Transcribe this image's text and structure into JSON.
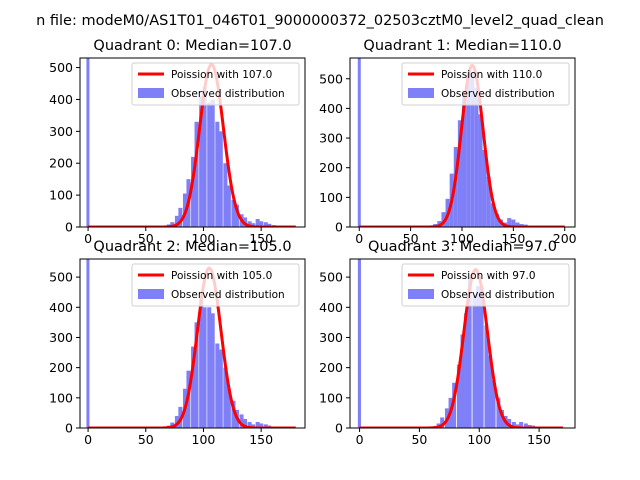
{
  "figure": {
    "suptitle": "n file: modeM0/AS1T01_046T01_9000000372_02503cztM0_level2_quad_clean"
  },
  "colors": {
    "hist": "#7f7ff7",
    "curve": "#ff0000",
    "axis": "#000000",
    "legend_border": "#d0d0d0"
  },
  "chart_data": [
    {
      "type": "bar",
      "title": "Quadrant 0: Median=107.0",
      "xlim": [
        -7,
        188
      ],
      "ylim": [
        0,
        530
      ],
      "xticks": [
        0,
        50,
        100,
        150
      ],
      "yticks": [
        0,
        100,
        200,
        300,
        400,
        500
      ],
      "xtick_labels": [
        "0",
        "50",
        "100",
        "150"
      ],
      "ytick_labels": [
        "0",
        "100",
        "200",
        "300",
        "400",
        "500"
      ],
      "legend": {
        "position": "upper-right",
        "entries": [
          "Poission with 107.0",
          "Observed distribution"
        ]
      },
      "poisson_mean": 107,
      "curve_peak": 510,
      "curve_x_range": [
        0,
        180
      ],
      "bin_width": 3.5,
      "zero_bar": 530,
      "bins": [
        [
          66,
          2
        ],
        [
          70,
          8
        ],
        [
          73,
          15
        ],
        [
          77,
          35
        ],
        [
          80,
          60
        ],
        [
          84,
          105
        ],
        [
          87,
          150
        ],
        [
          91,
          220
        ],
        [
          94,
          330
        ],
        [
          98,
          410
        ],
        [
          101,
          440
        ],
        [
          105,
          390
        ],
        [
          108,
          400
        ],
        [
          112,
          330
        ],
        [
          115,
          300
        ],
        [
          119,
          200
        ],
        [
          122,
          130
        ],
        [
          126,
          85
        ],
        [
          129,
          70
        ],
        [
          133,
          40
        ],
        [
          136,
          30
        ],
        [
          140,
          18
        ],
        [
          143,
          12
        ],
        [
          147,
          25
        ],
        [
          150,
          18
        ],
        [
          154,
          15
        ],
        [
          157,
          10
        ],
        [
          161,
          6
        ],
        [
          164,
          4
        ],
        [
          168,
          3
        ],
        [
          171,
          2
        ],
        [
          175,
          2
        ],
        [
          178,
          1
        ]
      ]
    },
    {
      "type": "bar",
      "title": "Quadrant 1: Median=110.0",
      "xlim": [
        -9,
        210
      ],
      "ylim": [
        0,
        570
      ],
      "xticks": [
        0,
        50,
        100,
        150,
        200
      ],
      "yticks": [
        0,
        100,
        200,
        300,
        400,
        500
      ],
      "xtick_labels": [
        "0",
        "50",
        "100",
        "150",
        "200"
      ],
      "ytick_labels": [
        "0",
        "100",
        "200",
        "300",
        "400",
        "500"
      ],
      "legend": {
        "position": "upper-right",
        "entries": [
          "Poission with 110.0",
          "Observed distribution"
        ]
      },
      "poisson_mean": 110,
      "curve_peak": 545,
      "curve_x_range": [
        0,
        200
      ],
      "bin_width": 4,
      "zero_bar": 570,
      "bins": [
        [
          70,
          3
        ],
        [
          74,
          10
        ],
        [
          78,
          20
        ],
        [
          82,
          50
        ],
        [
          86,
          95
        ],
        [
          90,
          180
        ],
        [
          94,
          270
        ],
        [
          98,
          360
        ],
        [
          102,
          460
        ],
        [
          106,
          500
        ],
        [
          110,
          520
        ],
        [
          114,
          470
        ],
        [
          118,
          380
        ],
        [
          122,
          260
        ],
        [
          126,
          170
        ],
        [
          130,
          80
        ],
        [
          134,
          45
        ],
        [
          138,
          25
        ],
        [
          142,
          15
        ],
        [
          146,
          30
        ],
        [
          150,
          25
        ],
        [
          154,
          15
        ],
        [
          158,
          10
        ],
        [
          162,
          8
        ],
        [
          166,
          5
        ],
        [
          170,
          3
        ],
        [
          174,
          2
        ],
        [
          178,
          1
        ]
      ]
    },
    {
      "type": "bar",
      "title": "Quadrant 2: Median=105.0",
      "xlim": [
        -7,
        188
      ],
      "ylim": [
        0,
        560
      ],
      "xticks": [
        0,
        50,
        100,
        150
      ],
      "yticks": [
        0,
        100,
        200,
        300,
        400,
        500
      ],
      "xtick_labels": [
        "0",
        "50",
        "100",
        "150"
      ],
      "ytick_labels": [
        "0",
        "100",
        "200",
        "300",
        "400",
        "500"
      ],
      "legend": {
        "position": "upper-right",
        "entries": [
          "Poission with 105.0",
          "Observed distribution"
        ]
      },
      "poisson_mean": 105,
      "curve_peak": 530,
      "curve_x_range": [
        0,
        180
      ],
      "bin_width": 3.5,
      "zero_bar": 560,
      "bins": [
        [
          66,
          3
        ],
        [
          70,
          8
        ],
        [
          73,
          18
        ],
        [
          77,
          40
        ],
        [
          80,
          70
        ],
        [
          84,
          130
        ],
        [
          87,
          190
        ],
        [
          91,
          270
        ],
        [
          94,
          350
        ],
        [
          98,
          440
        ],
        [
          101,
          400
        ],
        [
          105,
          400
        ],
        [
          108,
          380
        ],
        [
          112,
          280
        ],
        [
          115,
          260
        ],
        [
          119,
          200
        ],
        [
          122,
          130
        ],
        [
          126,
          90
        ],
        [
          129,
          60
        ],
        [
          133,
          45
        ],
        [
          136,
          30
        ],
        [
          140,
          20
        ],
        [
          143,
          12
        ],
        [
          147,
          20
        ],
        [
          150,
          15
        ],
        [
          154,
          12
        ],
        [
          157,
          8
        ],
        [
          161,
          5
        ],
        [
          164,
          3
        ],
        [
          168,
          2
        ],
        [
          171,
          1
        ],
        [
          175,
          1
        ]
      ]
    },
    {
      "type": "bar",
      "title": "Quadrant 3: Median=97.0",
      "xlim": [
        -8,
        180
      ],
      "ylim": [
        0,
        560
      ],
      "xticks": [
        0,
        50,
        100,
        150
      ],
      "yticks": [
        0,
        100,
        200,
        300,
        400,
        500
      ],
      "xtick_labels": [
        "0",
        "50",
        "100",
        "150"
      ],
      "ytick_labels": [
        "0",
        "100",
        "200",
        "300",
        "400",
        "500"
      ],
      "legend": {
        "position": "upper-right",
        "entries": [
          "Poission with 97.0",
          "Observed distribution"
        ]
      },
      "poisson_mean": 97,
      "curve_peak": 525,
      "curve_x_range": [
        0,
        170
      ],
      "bin_width": 3.3,
      "zero_bar": 560,
      "bins": [
        [
          60,
          2
        ],
        [
          63,
          6
        ],
        [
          66,
          15
        ],
        [
          69,
          35
        ],
        [
          73,
          65
        ],
        [
          76,
          100
        ],
        [
          79,
          150
        ],
        [
          83,
          210
        ],
        [
          86,
          310
        ],
        [
          89,
          380
        ],
        [
          92,
          500
        ],
        [
          96,
          440
        ],
        [
          99,
          470
        ],
        [
          102,
          470
        ],
        [
          106,
          340
        ],
        [
          109,
          240
        ],
        [
          112,
          160
        ],
        [
          116,
          100
        ],
        [
          119,
          60
        ],
        [
          122,
          40
        ],
        [
          125,
          30
        ],
        [
          129,
          20
        ],
        [
          132,
          12
        ],
        [
          135,
          20
        ],
        [
          139,
          15
        ],
        [
          142,
          10
        ],
        [
          145,
          8
        ],
        [
          149,
          5
        ],
        [
          152,
          4
        ],
        [
          155,
          3
        ],
        [
          159,
          2
        ],
        [
          162,
          1
        ]
      ]
    }
  ]
}
